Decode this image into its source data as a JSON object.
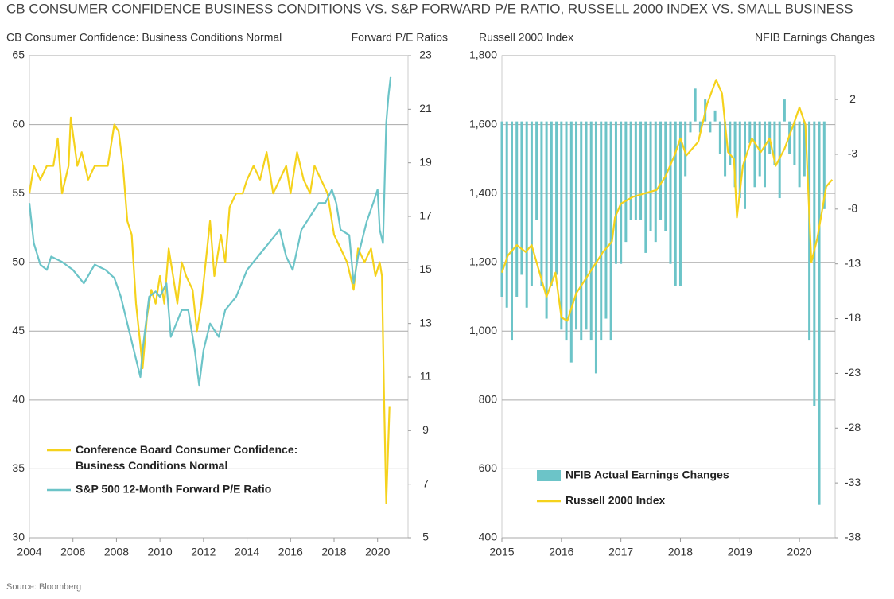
{
  "title": "CB CONSUMER CONFIDENCE BUSINESS CONDITIONS VS. S&P FORWARD P/E RATIO, RUSSELL 2000 INDEX VS. SMALL BUSINESS",
  "source": "Source: Bloomberg",
  "chart_data": [
    {
      "type": "line",
      "ylabel": "CB Consumer Confidence: Business Conditions Normal",
      "y2label": "Forward P/E Ratios",
      "xlim": [
        2004,
        2021.4
      ],
      "xticks": [
        2004,
        2006,
        2008,
        2010,
        2012,
        2014,
        2016,
        2018,
        2020
      ],
      "ylim": [
        30,
        65
      ],
      "yticks": [
        30,
        35,
        40,
        45,
        50,
        55,
        60,
        65
      ],
      "y2lim": [
        5,
        23
      ],
      "y2ticks": [
        5,
        7,
        9,
        11,
        13,
        15,
        17,
        19,
        21,
        23
      ],
      "grid": true,
      "legend": "lower left",
      "series": [
        {
          "name": "Conference Board Consumer Confidence: Business Conditions Normal",
          "color": "#f5d21c",
          "axis": "y",
          "x": [
            2004.0,
            2004.2,
            2004.5,
            2004.8,
            2005.1,
            2005.3,
            2005.5,
            2005.8,
            2005.9,
            2006.2,
            2006.4,
            2006.7,
            2007.0,
            2007.3,
            2007.6,
            2007.9,
            2008.1,
            2008.3,
            2008.5,
            2008.7,
            2008.9,
            2009.1,
            2009.2,
            2009.4,
            2009.6,
            2009.8,
            2010.0,
            2010.2,
            2010.4,
            2010.6,
            2010.8,
            2011.0,
            2011.2,
            2011.5,
            2011.7,
            2011.9,
            2012.1,
            2012.3,
            2012.5,
            2012.8,
            2013.0,
            2013.2,
            2013.5,
            2013.8,
            2014.0,
            2014.3,
            2014.6,
            2014.9,
            2015.2,
            2015.5,
            2015.8,
            2016.0,
            2016.3,
            2016.6,
            2016.9,
            2017.1,
            2017.4,
            2017.7,
            2018.0,
            2018.3,
            2018.6,
            2018.9,
            2019.1,
            2019.4,
            2019.7,
            2019.9,
            2020.1,
            2020.2,
            2020.3,
            2020.4,
            2020.55
          ],
          "values": [
            55,
            57,
            56,
            57,
            57,
            59,
            55,
            57,
            60.5,
            57,
            58,
            56,
            57,
            57,
            57,
            60,
            59.5,
            57,
            53,
            52,
            47,
            44,
            42.3,
            46,
            48,
            47,
            49,
            47,
            51,
            49,
            47,
            50,
            49,
            48,
            45,
            47,
            50,
            53,
            49,
            52,
            50,
            54,
            55,
            55,
            56,
            57,
            56,
            58,
            55,
            56,
            57,
            55,
            58,
            56,
            55,
            57,
            56,
            55,
            52,
            51,
            50,
            48,
            51,
            50,
            51,
            49,
            50,
            49,
            40,
            32.5,
            39.5
          ]
        },
        {
          "name": "S&P 500 12-Month Forward P/E Ratio",
          "color": "#6cc4c8",
          "axis": "y2",
          "x": [
            2004.0,
            2004.2,
            2004.5,
            2004.8,
            2005.0,
            2005.5,
            2006.0,
            2006.5,
            2007.0,
            2007.5,
            2007.9,
            2008.2,
            2008.5,
            2008.8,
            2009.1,
            2009.2,
            2009.5,
            2009.8,
            2010.0,
            2010.3,
            2010.5,
            2011.0,
            2011.3,
            2011.6,
            2011.8,
            2012.0,
            2012.3,
            2012.7,
            2013.0,
            2013.5,
            2014.0,
            2014.5,
            2015.0,
            2015.5,
            2015.8,
            2016.1,
            2016.5,
            2016.9,
            2017.3,
            2017.6,
            2017.9,
            2018.1,
            2018.3,
            2018.7,
            2018.9,
            2019.1,
            2019.5,
            2019.8,
            2020.0,
            2020.1,
            2020.25,
            2020.4,
            2020.5,
            2020.6
          ],
          "values": [
            17.5,
            16,
            15.2,
            15,
            15.5,
            15.3,
            15,
            14.5,
            15.2,
            15,
            14.7,
            14,
            13,
            12,
            11,
            12,
            14,
            14.2,
            14,
            14.5,
            12.5,
            13.5,
            13.5,
            12,
            10.7,
            12,
            13,
            12.5,
            13.5,
            14,
            15,
            15.5,
            16,
            16.5,
            15.5,
            15,
            16.5,
            17,
            17.5,
            17.5,
            18,
            17.5,
            16.5,
            16.3,
            14.5,
            15.5,
            16.8,
            17.5,
            18,
            16.5,
            16,
            20.5,
            21.5,
            22.2
          ]
        }
      ]
    },
    {
      "type": "combo",
      "ylabel": "Russell 2000 Index",
      "y2label": "NFIB Earnings Changes",
      "xlim": [
        2015,
        2020.6
      ],
      "xticks": [
        2015,
        2016,
        2017,
        2018,
        2019,
        2020
      ],
      "ylim": [
        400,
        1800
      ],
      "yticks": [
        400,
        600,
        800,
        {
          "value": 1000,
          "label": "1,000"
        },
        {
          "value": 1200,
          "label": "1,200"
        },
        {
          "value": 1400,
          "label": "1,400"
        },
        {
          "value": 1600,
          "label": "1,600"
        },
        {
          "value": 1800,
          "label": "1,800"
        }
      ],
      "y2lim": [
        -38,
        6
      ],
      "y2ticks": [
        -38,
        -33,
        -28,
        -23,
        -18,
        -13,
        -8,
        -3,
        2
      ],
      "grid": true,
      "legend": "lower left",
      "series": [
        {
          "name": "NFIB Actual Earnings Changes",
          "type": "bar",
          "color": "#6cc4c8",
          "axis": "y2",
          "x": [
            2015.0,
            2015.083,
            2015.167,
            2015.25,
            2015.333,
            2015.417,
            2015.5,
            2015.583,
            2015.667,
            2015.75,
            2015.833,
            2015.917,
            2016.0,
            2016.083,
            2016.167,
            2016.25,
            2016.333,
            2016.417,
            2016.5,
            2016.583,
            2016.667,
            2016.75,
            2016.833,
            2016.917,
            2017.0,
            2017.083,
            2017.167,
            2017.25,
            2017.333,
            2017.417,
            2017.5,
            2017.583,
            2017.667,
            2017.75,
            2017.833,
            2017.917,
            2018.0,
            2018.083,
            2018.167,
            2018.25,
            2018.333,
            2018.417,
            2018.5,
            2018.583,
            2018.667,
            2018.75,
            2018.833,
            2018.917,
            2019.0,
            2019.083,
            2019.167,
            2019.25,
            2019.333,
            2019.417,
            2019.5,
            2019.583,
            2019.667,
            2019.75,
            2019.833,
            2019.917,
            2020.0,
            2020.083,
            2020.167,
            2020.25,
            2020.333,
            2020.417
          ],
          "values": [
            -16,
            -17,
            -20,
            -16,
            -14,
            -17,
            -15,
            -9,
            -15,
            -18,
            -15,
            -14,
            -19,
            -20,
            -22,
            -19,
            -20,
            -19,
            -20,
            -23,
            -20,
            -18,
            -20,
            -13,
            -13,
            -11,
            -9,
            -9,
            -9,
            -12,
            -10,
            -11,
            -9,
            -10,
            -13,
            -15,
            -15,
            -5,
            -1,
            3,
            -1,
            2,
            -1,
            1,
            -3,
            -5,
            -4,
            -6,
            -7,
            -8,
            -2,
            -6,
            -5,
            -6,
            -3,
            -4,
            -7,
            2,
            -3,
            -4,
            -6,
            -5,
            -20,
            -26,
            -35,
            -8
          ]
        },
        {
          "name": "Russell 2000 Index",
          "type": "line",
          "color": "#f5d21c",
          "axis": "y",
          "x": [
            2015.0,
            2015.1,
            2015.25,
            2015.4,
            2015.5,
            2015.65,
            2015.75,
            2015.9,
            2016.0,
            2016.1,
            2016.25,
            2016.4,
            2016.55,
            2016.7,
            2016.85,
            2016.9,
            2017.0,
            2017.2,
            2017.4,
            2017.6,
            2017.75,
            2017.9,
            2018.0,
            2018.1,
            2018.3,
            2018.45,
            2018.6,
            2018.7,
            2018.8,
            2018.9,
            2018.95,
            2019.05,
            2019.2,
            2019.35,
            2019.5,
            2019.6,
            2019.75,
            2019.9,
            2020.0,
            2020.1,
            2020.2,
            2020.3,
            2020.45,
            2020.55
          ],
          "values": [
            1170,
            1220,
            1250,
            1230,
            1250,
            1160,
            1100,
            1170,
            1040,
            1030,
            1110,
            1150,
            1190,
            1230,
            1260,
            1330,
            1370,
            1390,
            1400,
            1410,
            1450,
            1510,
            1560,
            1510,
            1550,
            1660,
            1730,
            1690,
            1520,
            1500,
            1330,
            1480,
            1560,
            1520,
            1560,
            1480,
            1530,
            1600,
            1650,
            1600,
            1200,
            1270,
            1420,
            1440
          ]
        }
      ]
    }
  ]
}
